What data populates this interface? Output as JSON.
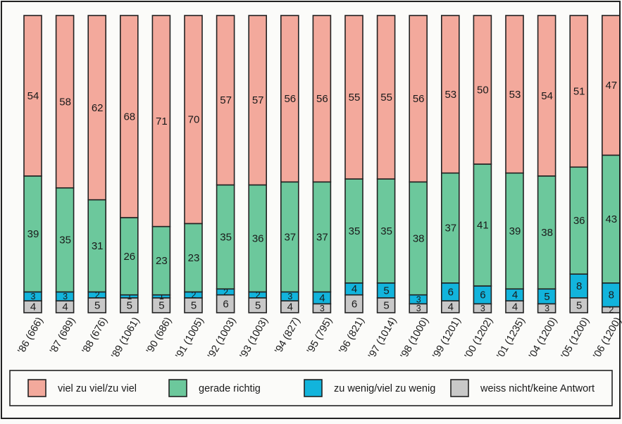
{
  "chart_data": {
    "type": "bar",
    "stacked": true,
    "orientation": "vertical",
    "categories": [
      "'86 (666)",
      "'87 (689)",
      "'88 (676)",
      "'89 (1061)",
      "'90 (686)",
      "'91 (1005)",
      "'92 (1003)",
      "'93 (1003)",
      "'94 (827)",
      "'95 (795)",
      "'96 (821)",
      "'97 (1014)",
      "'98 (1000)",
      "'99 (1201)",
      "'00 (1202)",
      "'01 (1235)",
      "'04 (1200)",
      "'05 (1200)",
      "'06 (1200)"
    ],
    "series": [
      {
        "name": "weiss nicht/keine Antwort",
        "color": "#c8c8c8",
        "values": [
          4,
          4,
          5,
          5,
          5,
          5,
          6,
          5,
          4,
          3,
          6,
          5,
          3,
          4,
          3,
          4,
          3,
          5,
          2
        ]
      },
      {
        "name": "zu wenig/viel zu wenig",
        "color": "#12b4dc",
        "values": [
          3,
          3,
          2,
          1,
          1,
          2,
          2,
          2,
          3,
          4,
          4,
          5,
          3,
          6,
          6,
          4,
          5,
          8,
          8
        ]
      },
      {
        "name": "gerade richtig",
        "color": "#6cc89c",
        "values": [
          39,
          35,
          31,
          26,
          23,
          23,
          35,
          36,
          37,
          37,
          35,
          35,
          38,
          37,
          41,
          39,
          38,
          36,
          43
        ]
      },
      {
        "name": "viel zu viel/zu viel",
        "color": "#f3a99c",
        "values": [
          54,
          58,
          62,
          68,
          71,
          70,
          57,
          57,
          56,
          56,
          55,
          55,
          56,
          53,
          50,
          53,
          54,
          51,
          47
        ]
      }
    ],
    "ylim": [
      0,
      100
    ],
    "grid": false,
    "legend_position": "bottom",
    "legend_order": [
      "viel zu viel/zu viel",
      "gerade richtig",
      "zu wenig/viel zu wenig",
      "weiss nicht/keine Antwort"
    ]
  }
}
